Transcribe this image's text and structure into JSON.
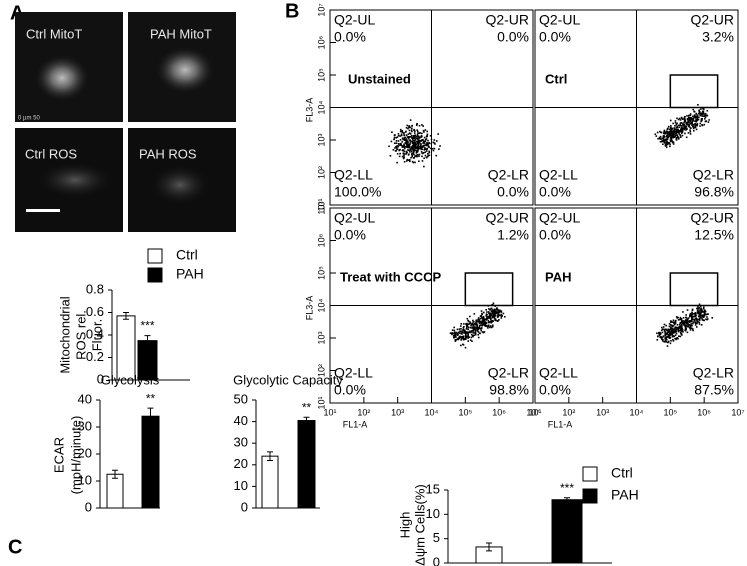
{
  "figure": {
    "panel_labels": [
      "A",
      "B",
      "C"
    ],
    "images": [
      {
        "label": "Ctrl MitoT"
      },
      {
        "label": "PAH MitoT"
      },
      {
        "label": "Ctrl ROS"
      },
      {
        "label": "PAH ROS"
      }
    ],
    "scale_label": "0 µm 50"
  },
  "chart_data": [
    {
      "type": "bar",
      "ylabel": [
        "Mitochondrial",
        "ROS rel.",
        "Fluor."
      ],
      "categories": [
        "Ctrl",
        "PAH"
      ],
      "values": [
        0.57,
        0.35
      ],
      "errors": [
        0.03,
        0.045
      ],
      "colors": [
        "#ffffff",
        "#000000"
      ],
      "significance": "***",
      "ylim": [
        0,
        0.8
      ],
      "yticks": [
        0,
        0.2,
        0.4,
        0.6,
        0.8
      ],
      "legend": "top-right"
    },
    {
      "type": "flow",
      "title": "Unstained",
      "ylabel": "FL3-A",
      "xscale": "log",
      "yscale": "log",
      "xlim": [
        10,
        10000000
      ],
      "ylim": [
        10,
        10000000
      ],
      "gate": [
        10000,
        10000
      ],
      "yticks": [
        {
          "value": 10,
          "label": "10¹"
        },
        {
          "value": 100,
          "label": "10²"
        },
        {
          "value": 1000,
          "label": "10³"
        },
        {
          "value": 10000,
          "label": "10⁴"
        },
        {
          "value": 100000,
          "label": "10⁵"
        },
        {
          "value": 1000000,
          "label": "10⁶"
        },
        {
          "value": 10000000,
          "label": "10⁷"
        }
      ],
      "quadrants": [
        "Q2-UL",
        "Q2-UR",
        "Q2-LL",
        "Q2-LR"
      ],
      "values": [
        0.0,
        0.0,
        100.0,
        0.0
      ],
      "value_labels": [
        "0.0%",
        "0.0%",
        "100.0%",
        "0.0%"
      ]
    },
    {
      "type": "flow",
      "title": "Ctrl",
      "xscale": "log",
      "yscale": "log",
      "xlim": [
        10,
        10000000
      ],
      "ylim": [
        10,
        10000000
      ],
      "gate": [
        10000,
        10000
      ],
      "gate_box": [
        [
          100000,
          2500000
        ],
        [
          10000,
          100000
        ]
      ],
      "quadrants": [
        "Q2-UL",
        "Q2-UR",
        "Q2-LL",
        "Q2-LR"
      ],
      "values": [
        0.0,
        3.2,
        0.0,
        96.8
      ],
      "value_labels": [
        "0.0%",
        "3.2%",
        "0.0%",
        "96.8%"
      ]
    },
    {
      "type": "flow",
      "title": "Treat with CCCP",
      "xlabel": "FL1-A",
      "ylabel": "FL3-A",
      "xscale": "log",
      "yscale": "log",
      "xlim": [
        10,
        10000000
      ],
      "ylim": [
        10,
        10000000
      ],
      "gate": [
        10000,
        10000
      ],
      "gate_box": [
        [
          100000,
          2500000
        ],
        [
          10000,
          100000
        ]
      ],
      "xticks": [
        {
          "value": 10,
          "label": "10¹"
        },
        {
          "value": 100,
          "label": "10²"
        },
        {
          "value": 1000,
          "label": "10³"
        },
        {
          "value": 10000,
          "label": "10⁴"
        },
        {
          "value": 100000,
          "label": "10⁵"
        },
        {
          "value": 1000000,
          "label": "10⁶"
        },
        {
          "value": 10000000,
          "label": "10⁷"
        }
      ],
      "yticks": [
        {
          "value": 10,
          "label": "10¹"
        },
        {
          "value": 100,
          "label": "10²"
        },
        {
          "value": 1000,
          "label": "10³"
        },
        {
          "value": 10000,
          "label": "10⁴"
        },
        {
          "value": 100000,
          "label": "10⁵"
        },
        {
          "value": 1000000,
          "label": "10⁶"
        },
        {
          "value": 10000000,
          "label": "10⁷"
        }
      ],
      "quadrants": [
        "Q2-UL",
        "Q2-UR",
        "Q2-LL",
        "Q2-LR"
      ],
      "values": [
        0.0,
        1.2,
        0.0,
        98.8
      ],
      "value_labels": [
        "0.0%",
        "1.2%",
        "0.0%",
        "98.8%"
      ]
    },
    {
      "type": "flow",
      "title": "PAH",
      "xlabel": "FL1-A",
      "xscale": "log",
      "yscale": "log",
      "xlim": [
        10,
        10000000
      ],
      "ylim": [
        10,
        10000000
      ],
      "gate": [
        10000,
        10000
      ],
      "gate_box": [
        [
          100000,
          2500000
        ],
        [
          10000,
          100000
        ]
      ],
      "xticks": [
        {
          "value": 10,
          "label": "10¹"
        },
        {
          "value": 100,
          "label": "10²"
        },
        {
          "value": 1000,
          "label": "10³"
        },
        {
          "value": 10000,
          "label": "10⁴"
        },
        {
          "value": 100000,
          "label": "10⁵"
        },
        {
          "value": 1000000,
          "label": "10⁶"
        },
        {
          "value": 10000000,
          "label": "10⁷"
        }
      ],
      "quadrants": [
        "Q2-UL",
        "Q2-UR",
        "Q2-LL",
        "Q2-LR"
      ],
      "values": [
        0.0,
        12.5,
        0.0,
        87.5
      ],
      "value_labels": [
        "0.0%",
        "12.5%",
        "0.0%",
        "87.5%"
      ]
    },
    {
      "type": "bar",
      "title": "Glycolysis",
      "ylabel": [
        "ECAR",
        "(mpH/minute)"
      ],
      "values": [
        12.5,
        34
      ],
      "errors": [
        1.5,
        3
      ],
      "colors": [
        "#ffffff",
        "#000000"
      ],
      "significance": "**",
      "ylim": [
        0,
        40
      ],
      "yticks": [
        0,
        10,
        20,
        30,
        40
      ]
    },
    {
      "type": "bar",
      "title": "Glycolytic Capacity",
      "values": [
        24,
        40.5
      ],
      "errors": [
        2,
        1.5
      ],
      "colors": [
        "#ffffff",
        "#000000"
      ],
      "significance": "**",
      "ylim": [
        0,
        50
      ],
      "yticks": [
        0,
        10,
        20,
        30,
        40,
        50
      ]
    },
    {
      "type": "bar",
      "ylabel": [
        "High",
        "Δψm Cells(%)"
      ],
      "categories": [
        "Ctrl",
        "PAH"
      ],
      "values": [
        3.3,
        13
      ],
      "errors": [
        0.8,
        0.4
      ],
      "colors": [
        "#ffffff",
        "#000000"
      ],
      "significance": "***",
      "ylim": [
        0,
        15
      ],
      "yticks": [
        0,
        5,
        10,
        15
      ],
      "legend": "top-right"
    }
  ]
}
